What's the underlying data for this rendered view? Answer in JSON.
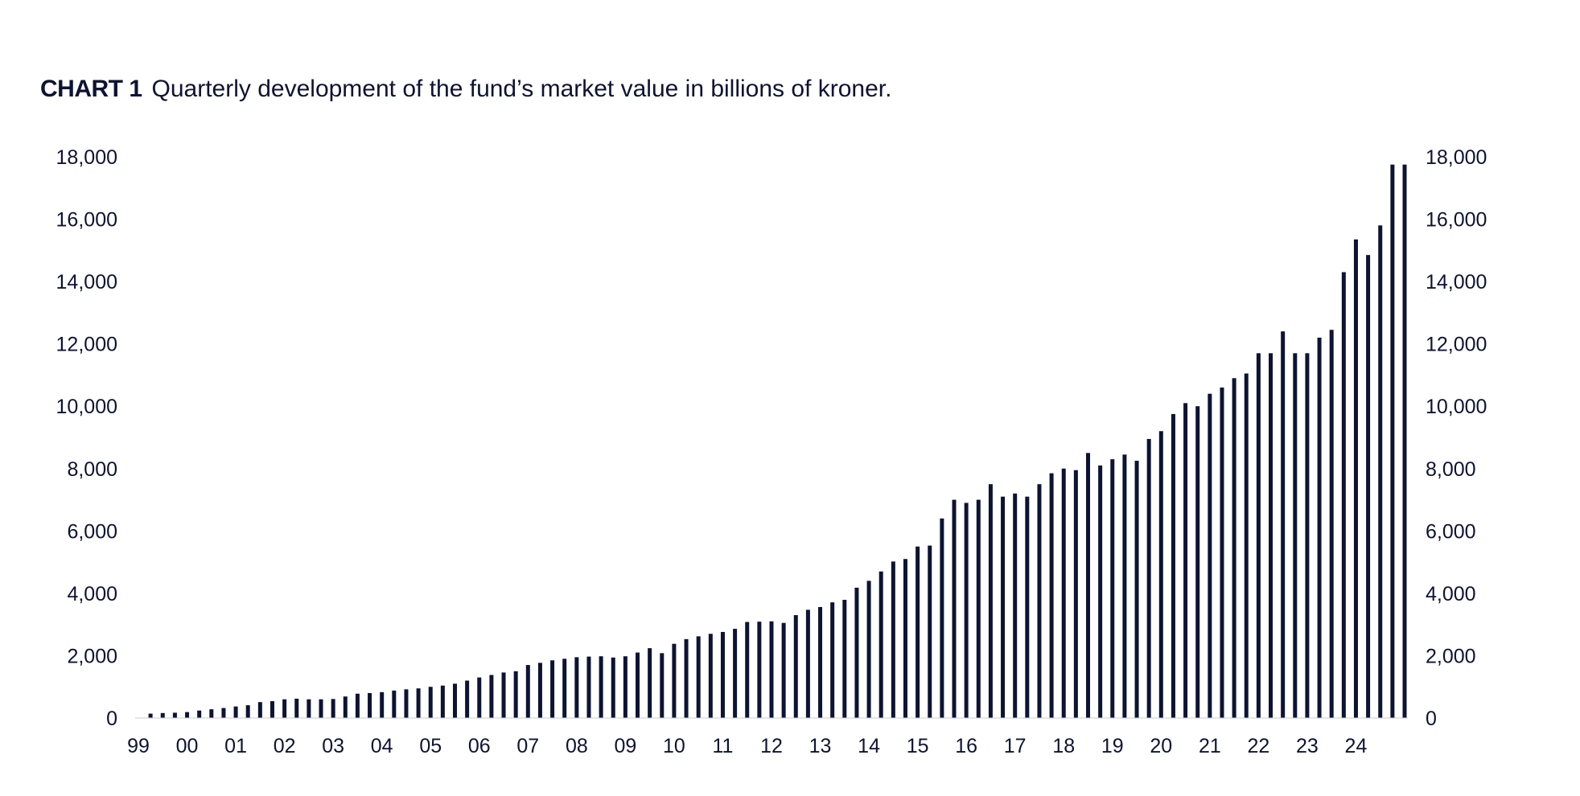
{
  "chart_data": {
    "type": "bar",
    "title_label": "CHART 1",
    "title": "Quarterly development of the fund’s market value in billions of kroner.",
    "xlabel": "",
    "ylabel": "",
    "ylim": [
      0,
      18000
    ],
    "y_ticks": [
      "0",
      "2,000",
      "4,000",
      "6,000",
      "8,000",
      "10,000",
      "12,000",
      "14,000",
      "16,000",
      "18,000"
    ],
    "x_ticks": [
      "99",
      "00",
      "01",
      "02",
      "03",
      "04",
      "05",
      "06",
      "07",
      "08",
      "09",
      "10",
      "11",
      "12",
      "13",
      "14",
      "15",
      "16",
      "17",
      "18",
      "19",
      "20",
      "21",
      "22",
      "23",
      "24"
    ],
    "grid": false,
    "legend": "none",
    "bar_color": "#0d1333",
    "values": [
      0,
      140,
      160,
      170,
      190,
      240,
      280,
      320,
      370,
      410,
      510,
      540,
      600,
      620,
      600,
      600,
      610,
      690,
      780,
      800,
      830,
      880,
      920,
      950,
      1000,
      1040,
      1100,
      1200,
      1300,
      1380,
      1460,
      1500,
      1700,
      1770,
      1850,
      1900,
      1950,
      1970,
      1980,
      1940,
      1980,
      2100,
      2240,
      2080,
      2380,
      2530,
      2620,
      2700,
      2760,
      2860,
      3080,
      3090,
      3100,
      3050,
      3300,
      3470,
      3560,
      3710,
      3790,
      4180,
      4400,
      4700,
      5020,
      5100,
      5500,
      5530,
      6400,
      7000,
      6900,
      7000,
      7500,
      7100,
      7200,
      7100,
      7500,
      7850,
      8000,
      7950,
      8500,
      8100,
      8300,
      8450,
      8250,
      8950,
      9200,
      9750,
      10100,
      10000,
      10400,
      10600,
      10900,
      11050,
      11700,
      11700,
      12400,
      11700,
      11700,
      12200,
      12450,
      14300,
      15350,
      14850,
      15800,
      17750,
      17750
    ]
  }
}
